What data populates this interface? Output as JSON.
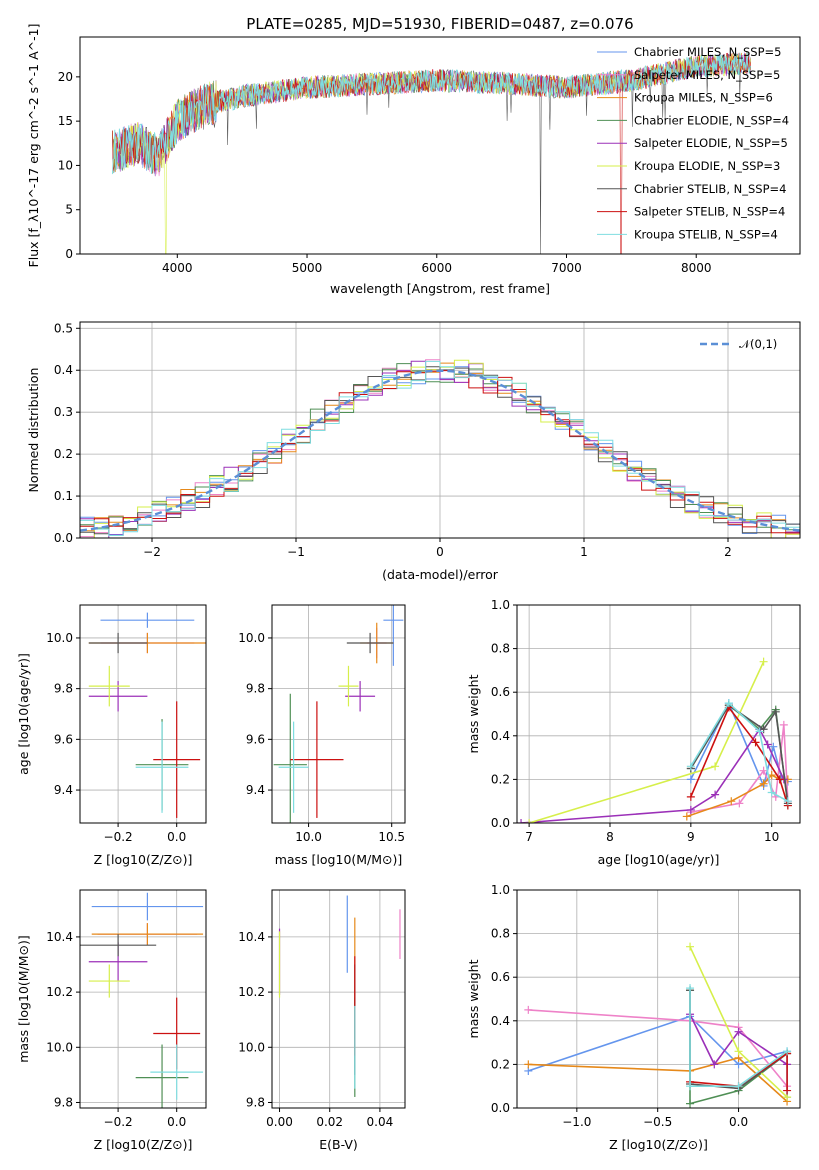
{
  "figure": {
    "title": "PLATE=0285, MJD=51930, FIBERID=0487, z=0.076"
  },
  "models": [
    {
      "name": "Chabrier MILES, N_SSP=5",
      "color": "#6495ed"
    },
    {
      "name": "Salpeter MILES, N_SSP=5",
      "color": "#ee82c8"
    },
    {
      "name": "Kroupa MILES, N_SSP=6",
      "color": "#e6891a"
    },
    {
      "name": "Chabrier ELODIE, N_SSP=4",
      "color": "#4f8f55"
    },
    {
      "name": "Salpeter ELODIE, N_SSP=5",
      "color": "#9b30b8"
    },
    {
      "name": "Kroupa ELODIE, N_SSP=3",
      "color": "#d6ef4a"
    },
    {
      "name": "Chabrier STELIB, N_SSP=4",
      "color": "#555555"
    },
    {
      "name": "Salpeter STELIB, N_SSP=4",
      "color": "#cc1111"
    },
    {
      "name": "Kroupa STELIB, N_SSP=4",
      "color": "#7fdde0"
    }
  ],
  "chart_data": [
    {
      "id": "spectrum",
      "type": "line",
      "xlabel": "wavelength [Angstrom, rest frame]",
      "ylabel": "Flux [f_λ10^-17 erg cm^-2 s^-1 A^-1]",
      "xlim": [
        3250,
        8800
      ],
      "ylim": [
        0,
        24.5
      ],
      "xticks": [
        "4000",
        "5000",
        "6000",
        "7000",
        "8000"
      ],
      "yticks": [
        "0",
        "5",
        "10",
        "15",
        "20"
      ],
      "continuum": [
        [
          3500,
          11.5
        ],
        [
          3700,
          12.5
        ],
        [
          3850,
          11
        ],
        [
          4000,
          15
        ],
        [
          4200,
          16.8
        ],
        [
          4500,
          17.8
        ],
        [
          5000,
          18.8
        ],
        [
          5500,
          19.2
        ],
        [
          6000,
          19.6
        ],
        [
          6500,
          19.3
        ],
        [
          7000,
          18.8
        ],
        [
          7500,
          19.6
        ],
        [
          8000,
          21.2
        ],
        [
          8400,
          21.5
        ]
      ],
      "grid": false,
      "legend_position": "upper right"
    },
    {
      "id": "residuals",
      "type": "line",
      "xlabel": "(data-model)/error",
      "ylabel": "Normed distribution",
      "xlim": [
        -2.5,
        2.5
      ],
      "ylim": [
        0,
        0.515
      ],
      "xticks": [
        "−2",
        "−1",
        "0",
        "1",
        "2"
      ],
      "yticks": [
        "0.0",
        "0.1",
        "0.2",
        "0.3",
        "0.4",
        "0.5"
      ],
      "gaussian_label": "𝒩(0,1)",
      "grid": true,
      "legend_position": "upper right"
    },
    {
      "id": "age_vs_Z",
      "type": "scatter",
      "xlabel": "Z [log10(Z/Z⊙)]",
      "ylabel": "age [log10(age/yr)]",
      "xlim": [
        -0.33,
        0.1
      ],
      "ylim": [
        9.27,
        10.13
      ],
      "xticks": [
        "−0.2",
        "0.0"
      ],
      "yticks": [
        "9.4",
        "9.6",
        "9.8",
        "10.0"
      ],
      "points": [
        {
          "x": -0.1,
          "y": 10.07,
          "xerr": 0.16,
          "yerr": 0.03
        },
        {
          "x": -0.1,
          "y": 9.98,
          "xerr": 0.16,
          "yerr": 0.04
        },
        {
          "x": -0.1,
          "y": 9.98,
          "xerr": 0.2,
          "yerr": 0.04
        },
        {
          "x": -0.05,
          "y": 9.5,
          "xerr": 0.09,
          "yerr": 0.18
        },
        {
          "x": -0.2,
          "y": 9.77,
          "xerr": 0.1,
          "yerr": 0.06
        },
        {
          "x": -0.23,
          "y": 9.81,
          "xerr": 0.07,
          "yerr": 0.08
        },
        {
          "x": -0.2,
          "y": 9.98,
          "xerr": 0.1,
          "yerr": 0.04
        },
        {
          "x": 0.0,
          "y": 9.52,
          "xerr": 0.08,
          "yerr": 0.23
        },
        {
          "x": -0.05,
          "y": 9.49,
          "xerr": 0.09,
          "yerr": 0.18
        }
      ],
      "grid": true
    },
    {
      "id": "age_vs_mass",
      "type": "scatter",
      "xlabel": "mass [log10(M/M⊙)]",
      "ylabel": "",
      "xlim": [
        9.78,
        10.58
      ],
      "ylim": [
        9.27,
        10.13
      ],
      "xticks": [
        "10.0",
        "10.5"
      ],
      "yticks": [
        "9.4",
        "9.6",
        "9.8",
        "10.0"
      ],
      "points": [
        {
          "x": 10.51,
          "y": 10.07,
          "xerr": 0.06,
          "yerr": 0.18
        },
        {
          "x": 10.41,
          "y": 9.98,
          "xerr": 0.06,
          "yerr": 0.06
        },
        {
          "x": 10.41,
          "y": 9.98,
          "xerr": 0.1,
          "yerr": 0.08
        },
        {
          "x": 9.89,
          "y": 9.5,
          "xerr": 0.1,
          "yerr": 0.28
        },
        {
          "x": 10.31,
          "y": 9.77,
          "xerr": 0.09,
          "yerr": 0.06
        },
        {
          "x": 10.24,
          "y": 9.81,
          "xerr": 0.06,
          "yerr": 0.08
        },
        {
          "x": 10.37,
          "y": 9.98,
          "xerr": 0.14,
          "yerr": 0.04
        },
        {
          "x": 10.05,
          "y": 9.52,
          "xerr": 0.16,
          "yerr": 0.23
        },
        {
          "x": 9.91,
          "y": 9.49,
          "xerr": 0.09,
          "yerr": 0.18
        }
      ],
      "grid": true
    },
    {
      "id": "massweight_vs_age",
      "type": "line",
      "xlabel": "age [log10(age/yr)]",
      "ylabel": "mass weight",
      "xlim": [
        6.85,
        10.35
      ],
      "ylim": [
        0,
        1.0
      ],
      "xticks": [
        "7",
        "8",
        "9",
        "10"
      ],
      "yticks": [
        "0.0",
        "0.2",
        "0.4",
        "0.6",
        "0.8",
        "1.0"
      ],
      "series": [
        {
          "model": 0,
          "x": [
            9.0,
            9.47,
            9.9,
            10.02,
            10.12,
            10.2
          ],
          "y": [
            0.2,
            0.55,
            0.17,
            0.35,
            0.21,
            0.19
          ]
        },
        {
          "model": 1,
          "x": [
            9.0,
            9.6,
            9.9,
            10.05,
            10.15,
            10.2
          ],
          "y": [
            0.05,
            0.09,
            0.24,
            0.12,
            0.45,
            0.1
          ]
        },
        {
          "model": 2,
          "x": [
            8.95,
            9.5,
            9.9,
            10.0,
            10.1,
            10.2
          ],
          "y": [
            0.03,
            0.1,
            0.18,
            0.22,
            0.2,
            0.2
          ]
        },
        {
          "model": 3,
          "x": [
            9.0,
            9.47,
            9.85,
            10.05,
            10.2
          ],
          "y": [
            0.25,
            0.54,
            0.43,
            0.52,
            0.08
          ]
        },
        {
          "model": 4,
          "x": [
            6.9,
            9.0,
            9.3,
            9.85,
            9.95,
            10.15
          ],
          "y": [
            0.0,
            0.06,
            0.13,
            0.43,
            0.36,
            0.2
          ]
        },
        {
          "model": 5,
          "x": [
            7.0,
            9.3,
            9.9
          ],
          "y": [
            0.0,
            0.26,
            0.74
          ]
        },
        {
          "model": 6,
          "x": [
            9.0,
            9.47,
            9.9,
            10.05,
            10.2
          ],
          "y": [
            0.25,
            0.54,
            0.43,
            0.51,
            0.09
          ]
        },
        {
          "model": 7,
          "x": [
            9.0,
            9.47,
            9.8,
            10.1,
            10.2
          ],
          "y": [
            0.12,
            0.53,
            0.37,
            0.2,
            0.08
          ]
        },
        {
          "model": 8,
          "x": [
            9.0,
            9.47,
            9.85,
            10.0,
            10.2
          ],
          "y": [
            0.26,
            0.55,
            0.42,
            0.14,
            0.1
          ]
        }
      ],
      "grid": true
    },
    {
      "id": "mass_vs_Z",
      "type": "scatter",
      "xlabel": "Z [log10(Z/Z⊙)]",
      "ylabel": "mass [log10(M/M⊙)]",
      "xlim": [
        -0.33,
        0.1
      ],
      "ylim": [
        9.78,
        10.57
      ],
      "xticks": [
        "−0.2",
        "0.0"
      ],
      "yticks": [
        "9.8",
        "10.0",
        "10.2",
        "10.4"
      ],
      "points": [
        {
          "x": -0.1,
          "y": 10.51,
          "xerr": 0.19,
          "yerr": 0.05
        },
        {
          "x": -0.1,
          "y": 10.41,
          "xerr": 0.17,
          "yerr": 0.04
        },
        {
          "x": -0.1,
          "y": 10.41,
          "xerr": 0.19,
          "yerr": 0.04
        },
        {
          "x": -0.05,
          "y": 9.89,
          "xerr": 0.09,
          "yerr": 0.12
        },
        {
          "x": -0.2,
          "y": 10.31,
          "xerr": 0.1,
          "yerr": 0.07
        },
        {
          "x": -0.23,
          "y": 10.24,
          "xerr": 0.07,
          "yerr": 0.06
        },
        {
          "x": -0.2,
          "y": 10.37,
          "xerr": 0.13,
          "yerr": 0.04
        },
        {
          "x": 0.0,
          "y": 10.05,
          "xerr": 0.08,
          "yerr": 0.13
        },
        {
          "x": 0.0,
          "y": 9.91,
          "xerr": 0.09,
          "yerr": 0.1
        }
      ],
      "grid": true
    },
    {
      "id": "mass_vs_ebv",
      "type": "scatter",
      "xlabel": "E(B-V)",
      "ylabel": "",
      "xlim": [
        -0.003,
        0.05
      ],
      "ylim": [
        9.78,
        10.57
      ],
      "xticks": [
        "0.00",
        "0.02",
        "0.04"
      ],
      "yticks": [
        "9.8",
        "10.0",
        "10.2",
        "10.4"
      ],
      "points": [
        {
          "x": 0.027,
          "y": 10.41,
          "yerr": 0.14
        },
        {
          "x": 0.048,
          "y": 10.41,
          "yerr": 0.09
        },
        {
          "x": 0.03,
          "y": 10.25,
          "yerr": 0.22
        },
        {
          "x": 0.03,
          "y": 10.0,
          "yerr": 0.18
        },
        {
          "x": 0.0,
          "y": 10.31,
          "yerr": 0.12
        },
        {
          "x": 0.0,
          "y": 10.3,
          "yerr": 0.12
        },
        {
          "x": 0.03,
          "y": 10.1,
          "yerr": 0.2
        },
        {
          "x": 0.03,
          "y": 10.15,
          "yerr": 0.18
        },
        {
          "x": 0.03,
          "y": 10.0,
          "yerr": 0.15
        }
      ],
      "grid": true
    },
    {
      "id": "massweight_vs_Z",
      "type": "line",
      "xlabel": "Z [log10(Z/Z⊙)]",
      "ylabel": "mass weight",
      "xlim": [
        -1.37,
        0.38
      ],
      "ylim": [
        0,
        1.0
      ],
      "xticks": [
        "−1.0",
        "−0.5",
        "0.0"
      ],
      "yticks": [
        "0.0",
        "0.2",
        "0.4",
        "0.6",
        "0.8",
        "1.0"
      ],
      "series": [
        {
          "model": 0,
          "x": [
            -1.3,
            -0.3,
            0.0,
            0.3,
            0.3
          ],
          "y": [
            0.17,
            0.42,
            0.2,
            0.26,
            0.05
          ]
        },
        {
          "model": 1,
          "x": [
            -1.3,
            -0.3,
            0.0,
            0.3
          ],
          "y": [
            0.45,
            0.4,
            0.37,
            0.1
          ]
        },
        {
          "model": 2,
          "x": [
            -1.3,
            -0.3,
            0.0,
            0.3
          ],
          "y": [
            0.2,
            0.17,
            0.23,
            0.03
          ]
        },
        {
          "model": 3,
          "x": [
            -0.3,
            -0.3,
            0.0,
            0.3
          ],
          "y": [
            0.54,
            0.02,
            0.08,
            0.25
          ]
        },
        {
          "model": 4,
          "x": [
            -0.3,
            -0.15,
            0.0,
            0.3
          ],
          "y": [
            0.43,
            0.2,
            0.35,
            0.2
          ]
        },
        {
          "model": 5,
          "x": [
            -0.3,
            0.0,
            0.3
          ],
          "y": [
            0.74,
            0.26,
            0.05
          ]
        },
        {
          "model": 6,
          "x": [
            -0.3,
            -0.3,
            0.0,
            0.3
          ],
          "y": [
            0.54,
            0.11,
            0.09,
            0.25
          ]
        },
        {
          "model": 7,
          "x": [
            -0.3,
            0.0,
            0.3,
            0.3
          ],
          "y": [
            0.12,
            0.1,
            0.25,
            0.08
          ]
        },
        {
          "model": 8,
          "x": [
            -0.3,
            -0.3,
            0.0,
            0.3
          ],
          "y": [
            0.55,
            0.1,
            0.1,
            0.26
          ]
        }
      ],
      "grid": true
    }
  ]
}
